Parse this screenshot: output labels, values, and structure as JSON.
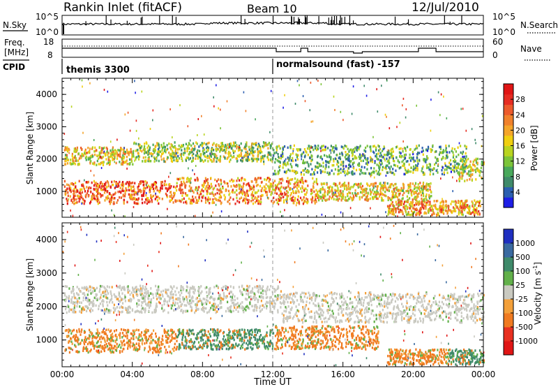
{
  "header": {
    "station": "Rankin Inlet (fitACF)",
    "beam": "Beam 10",
    "date": "12/Jul/2010"
  },
  "noise_panel": {
    "left_label": "N.Sky",
    "left_ticks": [
      "10^5",
      "10^0"
    ],
    "right_ticks": [
      "10^5",
      "10^0"
    ],
    "right_label": "N.Search"
  },
  "freq_panel": {
    "left_label_line1": "Freq.",
    "left_label_line2": "[MHz]",
    "left_ticks": [
      "18",
      "8"
    ],
    "right_ticks": [
      "60",
      "0"
    ],
    "right_label": "Nave"
  },
  "cpid_panel": {
    "label": "CPID",
    "segments": [
      {
        "start_hour": 0,
        "text": "themis 3300"
      },
      {
        "start_hour": 12,
        "text": "normalsound (fast) -157"
      }
    ]
  },
  "chart_data": [
    {
      "type": "heatmap",
      "title": "",
      "xlabel": "",
      "ylabel": "Slant Range [km]",
      "x_range_hours": [
        0,
        24
      ],
      "ylim": [
        200,
        4500
      ],
      "y_ticks": [
        "1000",
        "2000",
        "3000",
        "4000"
      ],
      "colorbar": {
        "label": "Power [dB]",
        "ticks": [
          "4",
          "8",
          "12",
          "16",
          "20",
          "24",
          "28"
        ],
        "colors": [
          "#1e1ee6",
          "#2c5fb0",
          "#3f8a6a",
          "#49a85b",
          "#7cc43a",
          "#b9d420",
          "#f0cf10",
          "#f4a52a",
          "#f0812c",
          "#ec5a2c",
          "#e62c22",
          "#e01515"
        ]
      },
      "echo_bands": [
        {
          "t0": 0.1,
          "t1": 4.0,
          "r0": 1800,
          "r1": 2350,
          "level": 0.55
        },
        {
          "t0": 4.0,
          "t1": 12.0,
          "r0": 1900,
          "r1": 2500,
          "level": 0.4
        },
        {
          "t0": 12.0,
          "t1": 23.0,
          "r0": 1500,
          "r1": 2400,
          "level": 0.3
        },
        {
          "t0": 0.1,
          "t1": 6.5,
          "r0": 600,
          "r1": 1300,
          "level": 0.8
        },
        {
          "t0": 6.5,
          "t1": 14.5,
          "r0": 600,
          "r1": 1400,
          "level": 0.7
        },
        {
          "t0": 14.5,
          "t1": 21.0,
          "r0": 700,
          "r1": 1250,
          "level": 0.55
        },
        {
          "t0": 18.5,
          "t1": 23.8,
          "r0": 250,
          "r1": 700,
          "level": 0.65
        },
        {
          "t0": 22.5,
          "t1": 24.0,
          "r0": 1300,
          "r1": 2000,
          "level": 0.5
        }
      ]
    },
    {
      "type": "heatmap",
      "title": "",
      "xlabel": "Time UT",
      "ylabel": "Slant Range [km]",
      "x_range_hours": [
        0,
        24
      ],
      "ylim": [
        200,
        4500
      ],
      "y_ticks": [
        "1000",
        "2000",
        "3000",
        "4000"
      ],
      "x_ticks": [
        "00:00",
        "04:00",
        "08:00",
        "12:00",
        "16:00",
        "20:00",
        "00:00"
      ],
      "colorbar": {
        "label": "Velocity [m s^-1]",
        "ticks": [
          "1000",
          "500",
          "100",
          "25",
          "-25",
          "-100",
          "-500",
          "-1000"
        ],
        "colors": [
          "#1f2fc0",
          "#3a6aa0",
          "#3f8a6a",
          "#62b04a",
          "#c9c9c0",
          "#f3a03a",
          "#f07a20",
          "#e83020",
          "#e01515"
        ]
      },
      "echo_bands": [
        {
          "t0": 0.1,
          "t1": 12.5,
          "r0": 1800,
          "r1": 2600,
          "class": "near-zero"
        },
        {
          "t0": 12.5,
          "t1": 24.0,
          "r0": 1500,
          "r1": 2400,
          "class": "near-zero"
        },
        {
          "t0": 0.1,
          "t1": 6.5,
          "r0": 600,
          "r1": 1300,
          "class": "away"
        },
        {
          "t0": 6.5,
          "t1": 12.0,
          "r0": 700,
          "r1": 1300,
          "class": "toward"
        },
        {
          "t0": 12.0,
          "t1": 18.0,
          "r0": 700,
          "r1": 1400,
          "class": "away"
        },
        {
          "t0": 18.5,
          "t1": 22.0,
          "r0": 250,
          "r1": 700,
          "class": "away"
        },
        {
          "t0": 22.0,
          "t1": 24.0,
          "r0": 250,
          "r1": 700,
          "class": "toward"
        }
      ]
    }
  ]
}
